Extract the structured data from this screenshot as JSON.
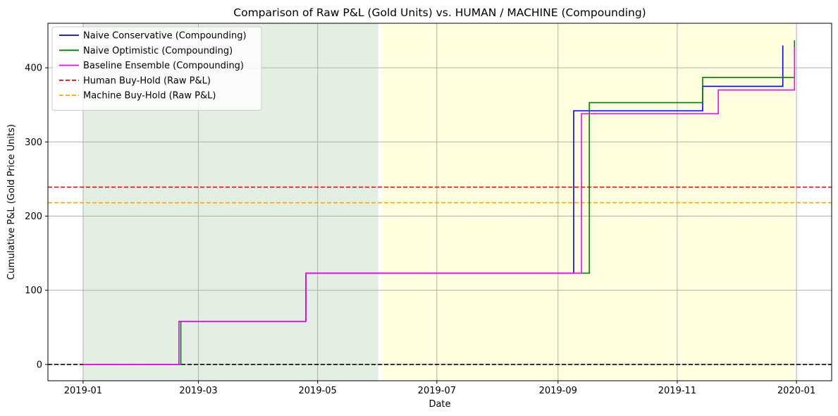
{
  "chart_data": {
    "type": "line",
    "title": "Comparison of Raw P&L (Gold Units) vs. HUMAN / MACHINE (Compounding)",
    "xlabel": "Date",
    "ylabel": "Cumulative P&L (Gold Price Units)",
    "x_scale": "date",
    "xlim": [
      "2018-12-14",
      "2020-01-19"
    ],
    "ylim": [
      -22,
      460
    ],
    "x_ticks": [
      "2019-01-01",
      "2019-03-01",
      "2019-05-01",
      "2019-07-01",
      "2019-09-01",
      "2019-11-01",
      "2020-01-01"
    ],
    "x_tick_labels": [
      "2019-01",
      "2019-03",
      "2019-05",
      "2019-07",
      "2019-09",
      "2019-11",
      "2020-01"
    ],
    "y_ticks": [
      0,
      100,
      200,
      300,
      400
    ],
    "y_tick_labels": [
      "0",
      "100",
      "200",
      "300",
      "400"
    ],
    "grid": true,
    "legend_position": "top-left",
    "shaded_regions": [
      {
        "from": "2019-01-01",
        "to": "2019-06-01",
        "color": "#e3efe3"
      },
      {
        "from": "2019-06-03",
        "to": "2019-12-31",
        "color": "#ffffe0"
      }
    ],
    "series": [
      {
        "name": "Naive Conservative (Compounding)",
        "color": "#0000ff",
        "style": "step",
        "points": [
          [
            "2019-01-01",
            0
          ],
          [
            "2019-02-19",
            0
          ],
          [
            "2019-02-19",
            58
          ],
          [
            "2019-04-25",
            58
          ],
          [
            "2019-04-25",
            123
          ],
          [
            "2019-09-09",
            123
          ],
          [
            "2019-09-09",
            342
          ],
          [
            "2019-11-14",
            342
          ],
          [
            "2019-11-14",
            375
          ],
          [
            "2019-12-25",
            375
          ],
          [
            "2019-12-25",
            430
          ]
        ]
      },
      {
        "name": "Naive Optimistic (Compounding)",
        "color": "#008000",
        "style": "step",
        "points": [
          [
            "2019-01-01",
            0
          ],
          [
            "2019-02-20",
            0
          ],
          [
            "2019-02-20",
            58
          ],
          [
            "2019-04-25",
            58
          ],
          [
            "2019-04-25",
            123
          ],
          [
            "2019-09-17",
            123
          ],
          [
            "2019-09-17",
            353
          ],
          [
            "2019-11-14",
            353
          ],
          [
            "2019-11-14",
            387
          ],
          [
            "2019-12-31",
            387
          ],
          [
            "2019-12-31",
            437
          ]
        ]
      },
      {
        "name": "Baseline Ensemble (Compounding)",
        "color": "#ff00ff",
        "style": "step",
        "points": [
          [
            "2019-01-01",
            0
          ],
          [
            "2019-02-19",
            0
          ],
          [
            "2019-02-19",
            58
          ],
          [
            "2019-04-25",
            58
          ],
          [
            "2019-04-25",
            123
          ],
          [
            "2019-09-13",
            123
          ],
          [
            "2019-09-13",
            338
          ],
          [
            "2019-11-22",
            338
          ],
          [
            "2019-11-22",
            370
          ],
          [
            "2019-12-31",
            370
          ],
          [
            "2019-12-31",
            428
          ]
        ]
      }
    ],
    "reference_lines": [
      {
        "name": "Human Buy-Hold (Raw P&L)",
        "y": 239,
        "color": "#ff0000",
        "style": "dashed",
        "in_legend": true
      },
      {
        "name": "Machine Buy-Hold (Raw P&L)",
        "y": 218,
        "color": "#ffa500",
        "style": "dashed",
        "in_legend": true
      },
      {
        "name": "",
        "y": 0,
        "color": "#000000",
        "style": "dashed",
        "in_legend": false
      }
    ]
  }
}
